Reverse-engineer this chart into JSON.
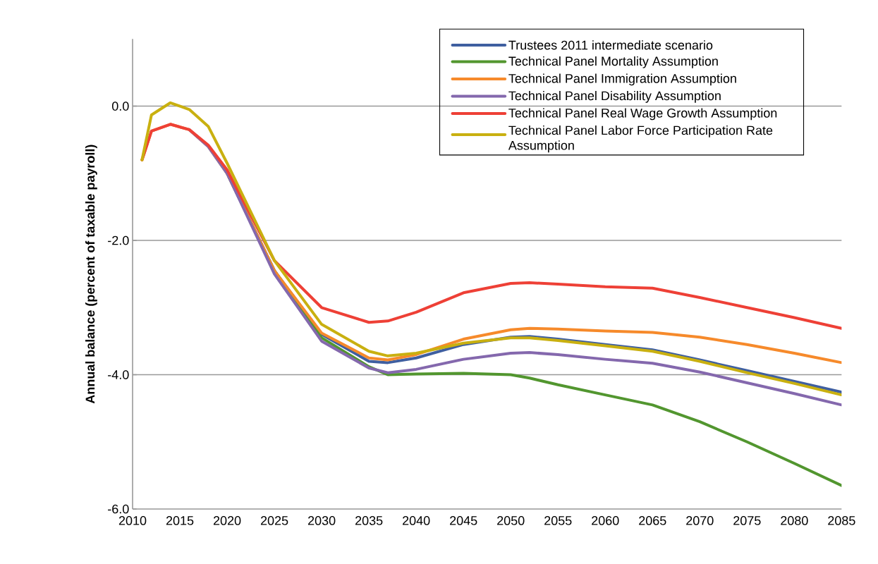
{
  "chart_data": {
    "type": "line",
    "ylabel": "Annual balance (percent of taxable payroll)",
    "xlim": [
      2010,
      2085
    ],
    "xticks": [
      2010,
      2015,
      2020,
      2025,
      2030,
      2035,
      2040,
      2045,
      2050,
      2055,
      2060,
      2065,
      2070,
      2075,
      2080,
      2085
    ],
    "ylim": [
      -6,
      1
    ],
    "yticks": [
      {
        "value": -6,
        "label": "-6.0"
      },
      {
        "value": -4,
        "label": "-4.0"
      },
      {
        "value": -2,
        "label": "-2.0"
      },
      {
        "value": 0,
        "label": "0.0"
      }
    ],
    "grid": "y",
    "legend": "top right",
    "marker": "none",
    "line_style": "solid",
    "x": [
      2011,
      2012,
      2014,
      2016,
      2018,
      2020,
      2025,
      2030,
      2035,
      2037,
      2040,
      2045,
      2050,
      2052,
      2055,
      2060,
      2065,
      2070,
      2075,
      2080,
      2085
    ],
    "series": [
      {
        "name": "Trustees 2011 intermediate scenario",
        "color": "#3f5fa0",
        "values": [
          null,
          null,
          null,
          null,
          -0.6,
          -1.0,
          -2.45,
          -3.4,
          -3.8,
          -3.82,
          -3.75,
          -3.55,
          -3.44,
          -3.43,
          -3.47,
          -3.55,
          -3.63,
          -3.78,
          -3.94,
          -4.1,
          -4.26
        ]
      },
      {
        "name": "Technical Panel Mortality Assumption",
        "color": "#52962f",
        "values": [
          null,
          null,
          null,
          null,
          null,
          -1.0,
          -2.45,
          -3.45,
          -3.88,
          -4.0,
          -3.99,
          -3.98,
          -4.0,
          -4.05,
          -4.15,
          -4.3,
          -4.45,
          -4.7,
          -5.0,
          -5.32,
          -5.65
        ]
      },
      {
        "name": "Technical Panel Immigration Assumption",
        "color": "#f68a2b",
        "values": [
          -0.8,
          -0.37,
          -0.27,
          -0.35,
          -0.6,
          -1.0,
          -2.45,
          -3.38,
          -3.75,
          -3.78,
          -3.7,
          -3.47,
          -3.33,
          -3.31,
          -3.32,
          -3.35,
          -3.37,
          -3.44,
          -3.55,
          -3.68,
          -3.82
        ]
      },
      {
        "name": "Technical Panel Disability Assumption",
        "color": "#8468ad",
        "values": [
          null,
          null,
          null,
          -0.35,
          -0.6,
          -1.0,
          -2.5,
          -3.5,
          -3.9,
          -3.97,
          -3.92,
          -3.77,
          -3.68,
          -3.67,
          -3.7,
          -3.77,
          -3.83,
          -3.96,
          -4.12,
          -4.28,
          -4.45
        ]
      },
      {
        "name": "Technical Panel Real Wage Growth Assumption",
        "color": "#ee4036",
        "values": [
          -0.8,
          -0.37,
          -0.27,
          -0.35,
          -0.58,
          -0.95,
          -2.3,
          -3.0,
          -3.22,
          -3.2,
          -3.07,
          -2.78,
          -2.64,
          -2.63,
          -2.65,
          -2.69,
          -2.71,
          -2.85,
          -3.0,
          -3.15,
          -3.31
        ]
      },
      {
        "name": "Technical Panel Labor Force Participation Rate Assumption",
        "color": "#c9b010",
        "values": [
          -0.8,
          -0.13,
          0.05,
          -0.05,
          -0.3,
          -0.85,
          -2.3,
          -3.25,
          -3.65,
          -3.72,
          -3.68,
          -3.53,
          -3.45,
          -3.45,
          -3.49,
          -3.57,
          -3.65,
          -3.8,
          -3.97,
          -4.13,
          -4.3
        ]
      }
    ]
  }
}
